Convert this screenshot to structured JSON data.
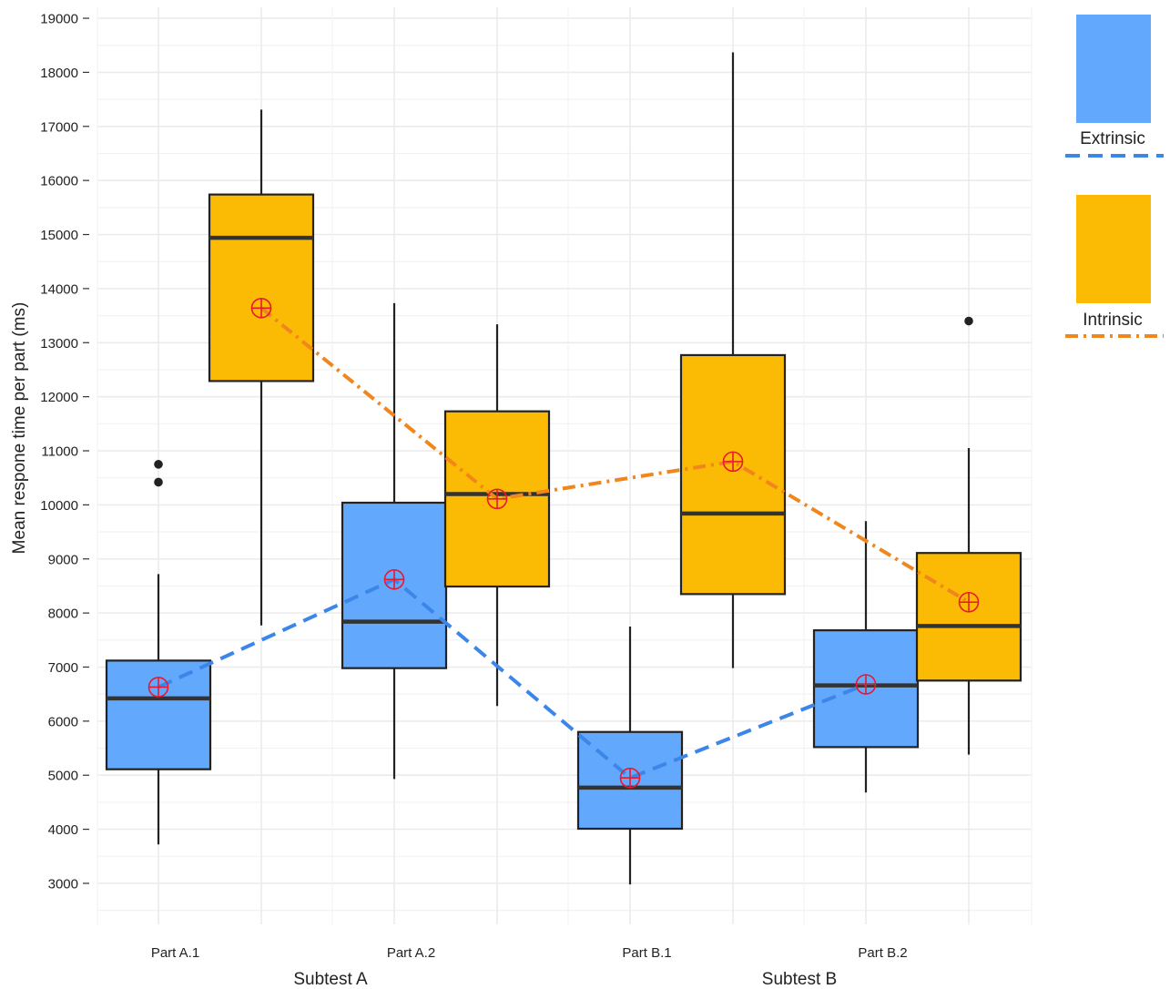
{
  "chart_data": {
    "type": "box",
    "ylabel": "Mean respone time per part (ms)",
    "ylim": [
      2250,
      19250
    ],
    "y_ticks": [
      3000,
      4000,
      5000,
      6000,
      7000,
      8000,
      9000,
      10000,
      11000,
      12000,
      13000,
      14000,
      15000,
      16000,
      17000,
      18000,
      19000
    ],
    "y_tick_labels": [
      "3000",
      "4000",
      "5000",
      "6000",
      "7000",
      "8000",
      "9000",
      "10000",
      "11000",
      "12000",
      "13000",
      "14000",
      "15000",
      "16000",
      "17000",
      "18000",
      "19000"
    ],
    "grid": true,
    "legend_position": "right",
    "groups": [
      {
        "label": "Subtest A",
        "parts": [
          "Part  A.1",
          "Part  A.2"
        ]
      },
      {
        "label": "Subtest B",
        "parts": [
          "Part  B.1",
          "Part  B.2"
        ]
      }
    ],
    "categories": [
      "Part  A.1",
      "Part  A.2",
      "Part  B.1",
      "Part  B.2"
    ],
    "series": [
      {
        "name": "Extrinsic",
        "color": "#62a8fc",
        "line_color": "#3b86e8",
        "line_style": "dashed",
        "boxes": [
          {
            "min": 3720,
            "q1": 5110,
            "median": 6420,
            "q3": 7120,
            "max": 8720,
            "mean": 6630,
            "outliers": [
              10420,
              10750
            ]
          },
          {
            "min": 4930,
            "q1": 6980,
            "median": 7840,
            "q3": 10040,
            "max": 13730,
            "mean": 8620,
            "outliers": []
          },
          {
            "min": 2980,
            "q1": 4010,
            "median": 4770,
            "q3": 5800,
            "max": 7750,
            "mean": 4950,
            "outliers": []
          },
          {
            "min": 4680,
            "q1": 5520,
            "median": 6660,
            "q3": 7680,
            "max": 9700,
            "mean": 6680,
            "outliers": []
          }
        ]
      },
      {
        "name": "Intrinsic",
        "color": "#fbbb05",
        "line_color": "#f0861c",
        "line_style": "dashdot",
        "boxes": [
          {
            "min": 7770,
            "q1": 12290,
            "median": 14940,
            "q3": 15740,
            "max": 17310,
            "mean": 13640,
            "outliers": []
          },
          {
            "min": 6280,
            "q1": 8490,
            "median": 10200,
            "q3": 11730,
            "max": 13340,
            "mean": 10110,
            "outliers": []
          },
          {
            "min": 6980,
            "q1": 8350,
            "median": 9840,
            "q3": 12770,
            "max": 18370,
            "mean": 10800,
            "outliers": []
          },
          {
            "min": 5380,
            "q1": 6750,
            "median": 7760,
            "q3": 9110,
            "max": 11050,
            "mean": 8200,
            "outliers": [
              13400
            ]
          }
        ]
      }
    ]
  }
}
